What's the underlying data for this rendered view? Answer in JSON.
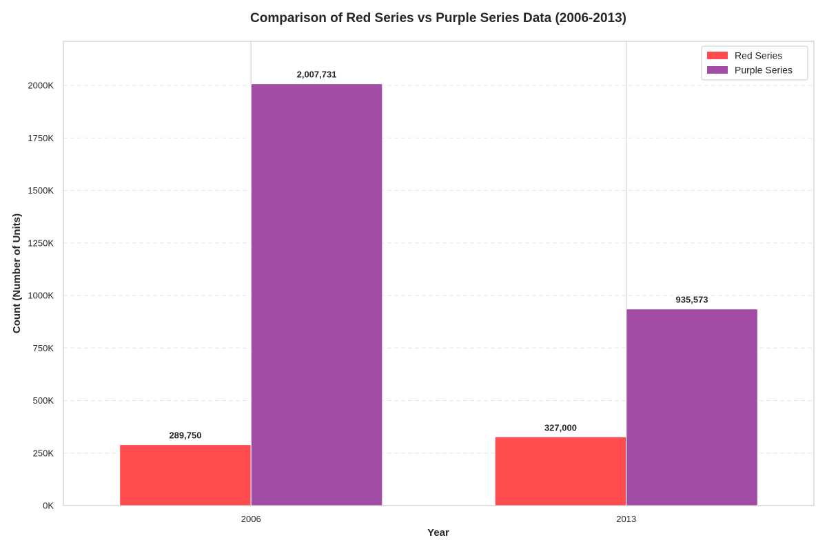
{
  "chart_data": {
    "type": "bar",
    "title": "Comparison of Red Series vs Purple Series Data (2006-2013)",
    "xlabel": "Year",
    "ylabel": "Count (Number of Units)",
    "categories": [
      "2006",
      "2013"
    ],
    "series": [
      {
        "name": "Red Series",
        "color": "#ff4d4f",
        "values": [
          289750,
          327000
        ],
        "labels": [
          "289,750",
          "327,000"
        ]
      },
      {
        "name": "Purple Series",
        "color": "#a24ca5",
        "values": [
          2007731,
          935573
        ],
        "labels": [
          "2,007,731",
          "935,573"
        ]
      }
    ],
    "ylim": [
      0,
      2210000
    ],
    "yticks": [
      0,
      250000,
      500000,
      750000,
      1000000,
      1250000,
      1500000,
      1750000,
      2000000
    ],
    "ytick_labels": [
      "0K",
      "250K",
      "500K",
      "750K",
      "1000K",
      "1250K",
      "1500K",
      "1750K",
      "2000K"
    ],
    "grid": true,
    "legend_position": "top-right"
  }
}
